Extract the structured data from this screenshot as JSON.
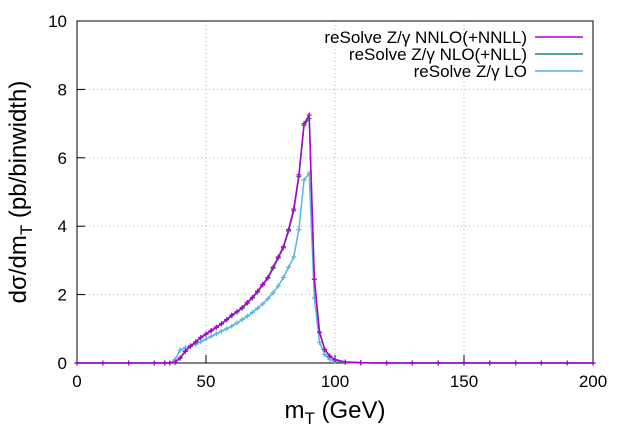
{
  "chart_data": {
    "type": "line",
    "xlabel": [
      "m",
      "T",
      " (GeV)"
    ],
    "ylabel": [
      "dσ/dm",
      "T",
      " (pb/binwidth)"
    ],
    "x": [
      0,
      10,
      20,
      30,
      34,
      36,
      38,
      40,
      42,
      44,
      46,
      48,
      50,
      52,
      54,
      56,
      58,
      60,
      62,
      64,
      66,
      68,
      70,
      72,
      74,
      76,
      78,
      80,
      82,
      84,
      86,
      88,
      90,
      92,
      94,
      96,
      98,
      100,
      104,
      110,
      120,
      130,
      140,
      150,
      160,
      170,
      180,
      190,
      200
    ],
    "series": [
      {
        "name": "reSolve Z/γ NNLO(+NNLL)",
        "color": "#b000d0",
        "values": [
          0,
          0,
          0,
          0,
          0,
          0,
          0.02,
          0.15,
          0.35,
          0.5,
          0.62,
          0.75,
          0.85,
          0.95,
          1.05,
          1.15,
          1.27,
          1.4,
          1.5,
          1.62,
          1.77,
          1.92,
          2.1,
          2.3,
          2.5,
          2.8,
          3.1,
          3.4,
          3.9,
          4.5,
          5.5,
          7.0,
          7.25,
          2.45,
          0.9,
          0.4,
          0.2,
          0.1,
          0.03,
          0.01,
          0,
          0,
          0,
          0,
          0,
          0,
          0,
          0,
          0
        ]
      },
      {
        "name": "reSolve Z/γ NLO(+NLL)",
        "color": "#1a8a70",
        "values": [
          0,
          0,
          0,
          0,
          0,
          0,
          0.02,
          0.14,
          0.34,
          0.49,
          0.61,
          0.74,
          0.84,
          0.94,
          1.04,
          1.14,
          1.26,
          1.38,
          1.49,
          1.6,
          1.75,
          1.9,
          2.08,
          2.28,
          2.48,
          2.77,
          3.07,
          3.37,
          3.86,
          4.45,
          5.45,
          6.95,
          7.15,
          2.45,
          0.9,
          0.4,
          0.2,
          0.1,
          0.03,
          0.01,
          0,
          0,
          0,
          0,
          0,
          0,
          0,
          0,
          0
        ]
      },
      {
        "name": "reSolve Z/γ LO",
        "color": "#5ab4e0",
        "values": [
          0,
          0,
          0,
          0,
          0,
          0,
          0.1,
          0.38,
          0.45,
          0.5,
          0.55,
          0.62,
          0.7,
          0.78,
          0.85,
          0.93,
          1.0,
          1.08,
          1.17,
          1.27,
          1.37,
          1.48,
          1.6,
          1.73,
          1.88,
          2.05,
          2.25,
          2.5,
          2.8,
          3.1,
          3.9,
          5.35,
          5.55,
          1.9,
          0.6,
          0.25,
          0.1,
          0.05,
          0.02,
          0,
          0,
          0,
          0,
          0,
          0,
          0,
          0,
          0,
          0
        ]
      }
    ],
    "xlim": [
      0,
      200
    ],
    "xticks": [
      0,
      50,
      100,
      150,
      200
    ],
    "ylim": [
      0,
      10
    ],
    "yticks": [
      0,
      2,
      4,
      6,
      8,
      10
    ],
    "grid": true,
    "legend": "top-right"
  }
}
